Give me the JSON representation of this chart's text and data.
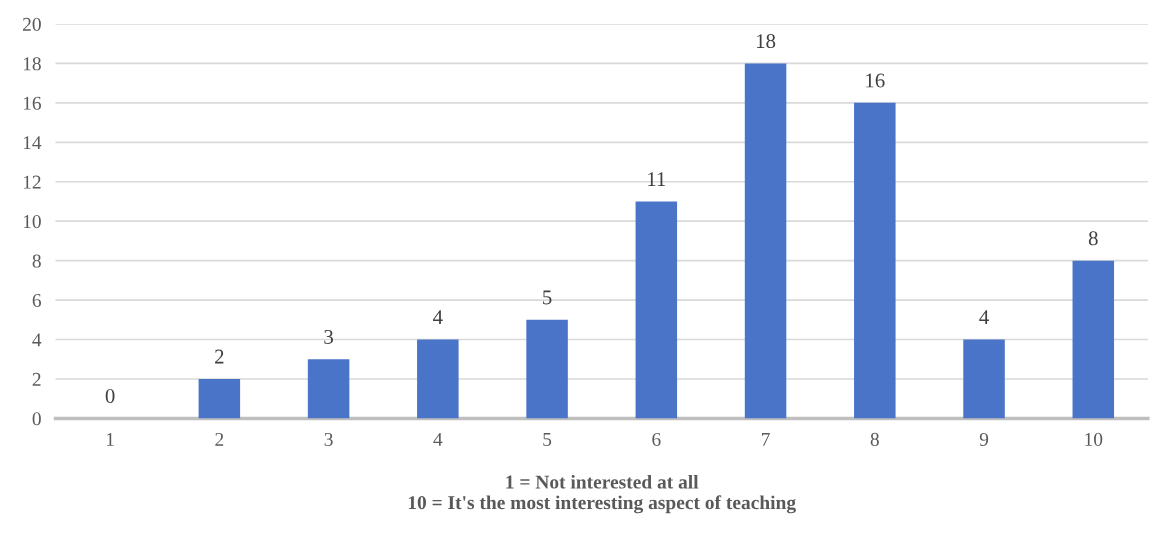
{
  "chart_data": {
    "type": "bar",
    "xlabel": "1 = Not interested at all\n10 = It's the most interesting aspect of teaching",
    "categories": [
      "1",
      "2",
      "3",
      "4",
      "5",
      "6",
      "7",
      "8",
      "9",
      "10"
    ],
    "values": [
      0,
      2,
      3,
      4,
      5,
      11,
      18,
      16,
      4,
      8
    ],
    "color": "#4a74c8",
    "ylim": [
      0,
      20
    ],
    "yticks": [
      0,
      2,
      4,
      6,
      8,
      10,
      12,
      14,
      16,
      18,
      20
    ],
    "grid": "y",
    "data_labels": true
  }
}
